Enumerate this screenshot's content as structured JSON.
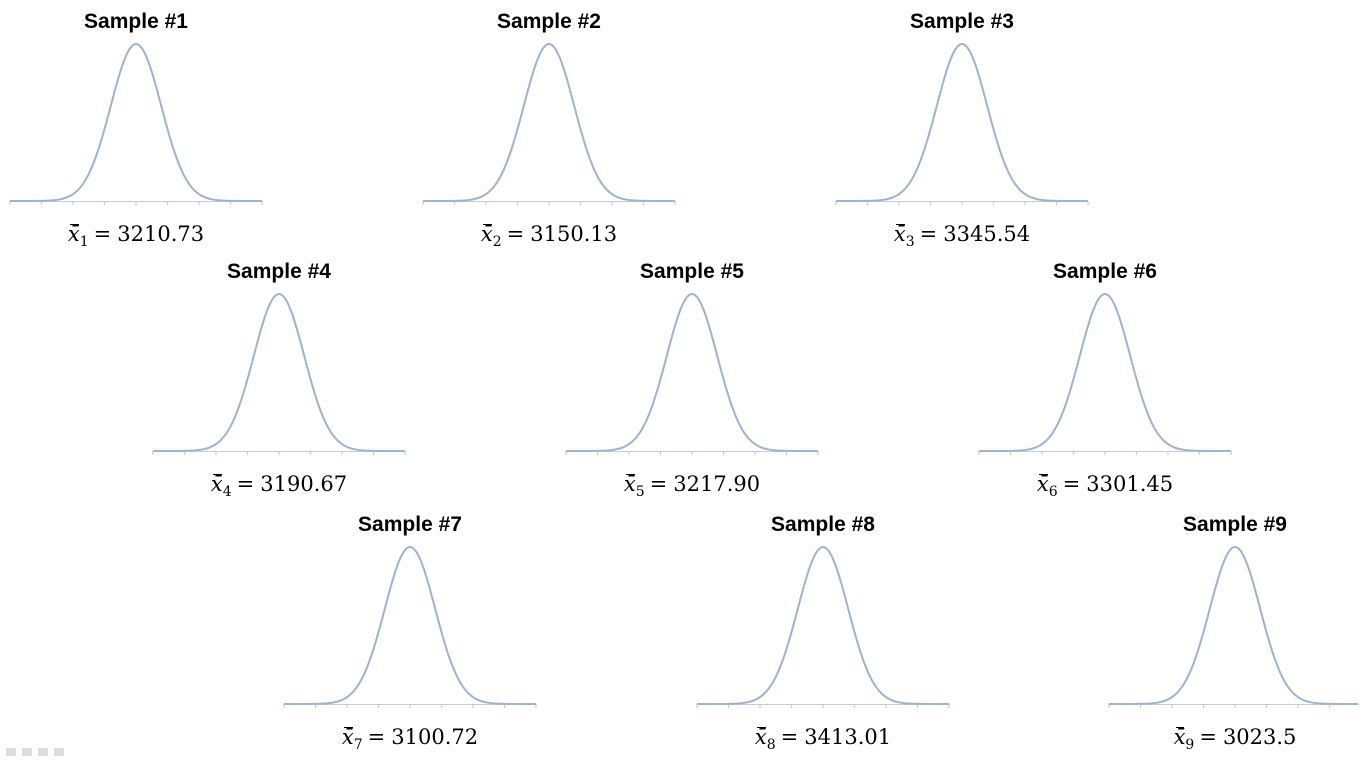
{
  "slide": {
    "curve_color": "#9fb3cf",
    "axis_color": "#c8ccd2"
  },
  "chart_data": [
    {
      "type": "line",
      "title": "Sample #1",
      "stat_var": "x̄",
      "stat_sub": "1",
      "stat_value": "3210.73",
      "curve": "normal",
      "ticks": 9
    },
    {
      "type": "line",
      "title": "Sample #2",
      "stat_var": "x̄",
      "stat_sub": "2",
      "stat_value": "3150.13",
      "curve": "normal",
      "ticks": 9
    },
    {
      "type": "line",
      "title": "Sample #3",
      "stat_var": "x̄",
      "stat_sub": "3",
      "stat_value": "3345.54",
      "curve": "normal",
      "ticks": 9
    },
    {
      "type": "line",
      "title": "Sample #4",
      "stat_var": "x̄",
      "stat_sub": "4",
      "stat_value": "3190.67",
      "curve": "normal",
      "ticks": 9
    },
    {
      "type": "line",
      "title": "Sample #5",
      "stat_var": "x̄",
      "stat_sub": "5",
      "stat_value": "3217.90",
      "curve": "normal",
      "ticks": 9
    },
    {
      "type": "line",
      "title": "Sample #6",
      "stat_var": "x̄",
      "stat_sub": "6",
      "stat_value": "3301.45",
      "curve": "normal",
      "ticks": 9
    },
    {
      "type": "line",
      "title": "Sample #7",
      "stat_var": "x̄",
      "stat_sub": "7",
      "stat_value": "3100.72",
      "curve": "normal",
      "ticks": 9
    },
    {
      "type": "line",
      "title": "Sample #8",
      "stat_var": "x̄",
      "stat_sub": "8",
      "stat_value": "3413.01",
      "curve": "normal",
      "ticks": 9
    },
    {
      "type": "line",
      "title": "Sample #9",
      "stat_var": "x̄",
      "stat_sub": "9",
      "stat_value": "3023.5",
      "curve": "normal",
      "ticks": 9
    }
  ]
}
